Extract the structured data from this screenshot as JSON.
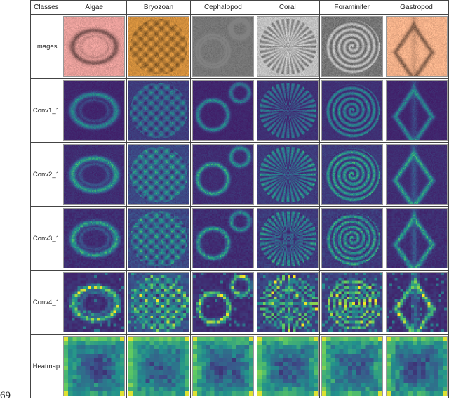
{
  "header": {
    "corner": "Classes",
    "classes": [
      "Algae",
      "Bryozoan",
      "Cephalopod",
      "Coral",
      "Foraminifer",
      "Gastropod"
    ]
  },
  "rows": [
    {
      "label": "Images",
      "kind": "photo"
    },
    {
      "label": "Conv1_1",
      "kind": "feature"
    },
    {
      "label": "Conv2_1",
      "kind": "feature"
    },
    {
      "label": "Conv3_1",
      "kind": "feature"
    },
    {
      "label": "Conv4_1",
      "kind": "feature"
    },
    {
      "label": "Heatmap",
      "kind": "heatmap"
    }
  ],
  "photo_tints": [
    "#c98a86",
    "#c8883a",
    "#9a9a9a",
    "#b0b0b0",
    "#a8a8a8",
    "#d49a78"
  ],
  "colormap": "viridis",
  "page_number": "69"
}
